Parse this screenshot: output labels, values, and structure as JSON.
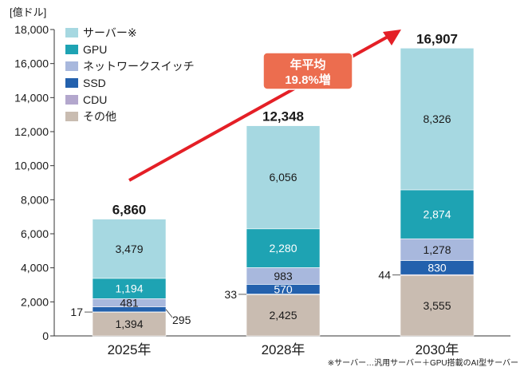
{
  "chart_data": {
    "type": "bar",
    "stacked": true,
    "unit_label": "[億ドル]",
    "categories": [
      "2025年",
      "2028年",
      "2030年"
    ],
    "totals": [
      "6,860",
      "12,348",
      "16,907"
    ],
    "ylim": [
      0,
      18000
    ],
    "yticks": [
      0,
      2000,
      4000,
      6000,
      8000,
      10000,
      12000,
      14000,
      16000,
      18000
    ],
    "ytick_labels": [
      "0",
      "2,000",
      "4,000",
      "6,000",
      "8,000",
      "10,000",
      "12,000",
      "14,000",
      "16,000",
      "18,000"
    ],
    "series": [
      {
        "name": "その他",
        "color": "#c9bcb1",
        "values": [
          1394,
          2425,
          3555
        ],
        "labels": [
          "1,394",
          "2,425",
          "3,555"
        ],
        "light": false
      },
      {
        "name": "CDU",
        "color": "#b3a7cd",
        "values": [
          17,
          33,
          44
        ],
        "labels": [
          "17",
          "33",
          "44"
        ],
        "light": false
      },
      {
        "name": "SSD",
        "color": "#2361ad",
        "values": [
          295,
          570,
          830
        ],
        "labels": [
          "295",
          "570",
          "830"
        ],
        "light": true
      },
      {
        "name": "ネットワークスイッチ",
        "color": "#a8b8dd",
        "values": [
          481,
          983,
          1278
        ],
        "labels": [
          "481",
          "983",
          "1,278"
        ],
        "light": false
      },
      {
        "name": "GPU",
        "color": "#1ea3b3",
        "values": [
          1194,
          2280,
          2874
        ],
        "labels": [
          "1,194",
          "2,280",
          "2,874"
        ],
        "light": true
      },
      {
        "name": "サーバー※",
        "color": "#a6d8e1",
        "values": [
          3479,
          6056,
          8326
        ],
        "labels": [
          "3,479",
          "6,056",
          "8,326"
        ],
        "light": false
      }
    ],
    "legend_order": [
      "サーバー※",
      "GPU",
      "ネットワークスイッチ",
      "SSD",
      "CDU",
      "その他"
    ],
    "legend_position": "top-left",
    "callout": {
      "line1": "年平均",
      "line2": "19.8%増",
      "color": "#ec6d4f"
    },
    "trend_arrow_color": "#e41f26",
    "footnote": "※サーバー…汎用サーバー＋GPU搭載のAI型サーバー"
  }
}
